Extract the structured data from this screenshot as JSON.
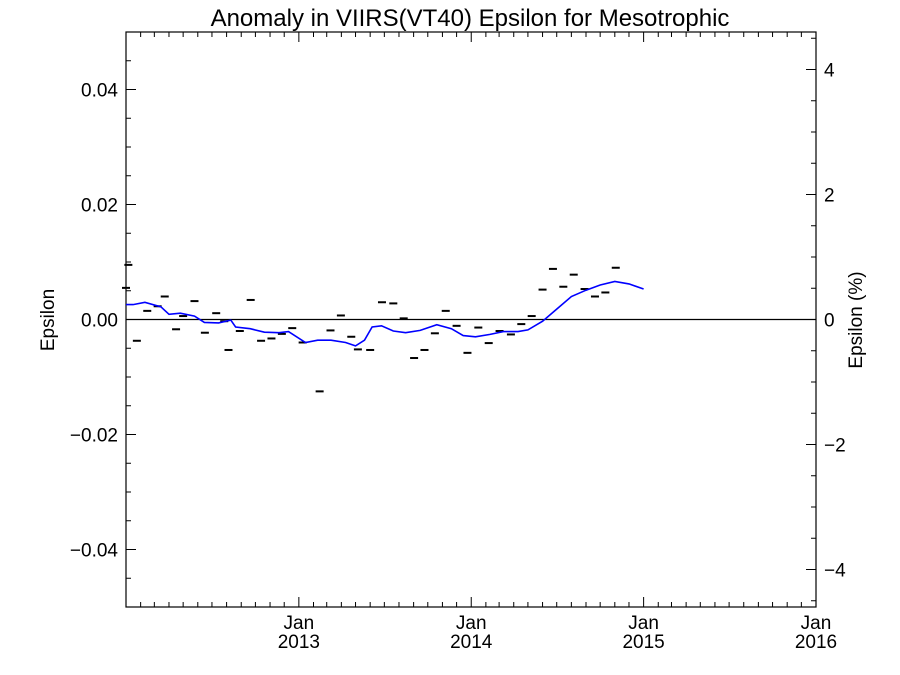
{
  "chart_data": {
    "type": "scatter",
    "title": "Anomaly in VIIRS(VT40) Epsilon for Mesotrophic",
    "ylabel": "Epsilon",
    "y2label": "Epsilon (%)",
    "xlabel": "",
    "xlim": [
      "2012-01-01",
      "2016-01-01"
    ],
    "ylim": [
      -0.05,
      0.05
    ],
    "y2lim": [
      -4.6,
      4.6
    ],
    "y_ticks": [
      -0.04,
      -0.02,
      0.0,
      0.02,
      0.04
    ],
    "y_tick_labels": [
      "−0.04",
      "−0.02",
      "0.00",
      "0.02",
      "0.04"
    ],
    "y2_ticks": [
      -4,
      -2,
      0,
      2,
      4
    ],
    "y2_tick_labels": [
      "−4",
      "−2",
      "0",
      "2",
      "4"
    ],
    "x_ticks": [
      {
        "date": "2013-01-01",
        "month": "Jan",
        "year": "2013"
      },
      {
        "date": "2014-01-01",
        "month": "Jan",
        "year": "2014"
      },
      {
        "date": "2015-01-01",
        "month": "Jan",
        "year": "2015"
      },
      {
        "date": "2016-01-01",
        "month": "Jan",
        "year": "2016"
      }
    ],
    "zero_line": true,
    "grid": false,
    "series": [
      {
        "kind": "points",
        "marker": "dash",
        "color": "#000000",
        "points": [
          [
            "2012-01-01",
            0.0055
          ],
          [
            "2012-01-06",
            0.0095
          ],
          [
            "2012-01-24",
            -0.0037
          ],
          [
            "2012-02-15",
            0.0015
          ],
          [
            "2012-03-08",
            0.0023
          ],
          [
            "2012-03-23",
            0.004
          ],
          [
            "2012-04-16",
            -0.0017
          ],
          [
            "2012-05-01",
            0.0006
          ],
          [
            "2012-05-25",
            0.0032
          ],
          [
            "2012-06-16",
            -0.0023
          ],
          [
            "2012-07-10",
            0.0011
          ],
          [
            "2012-07-27",
            -0.0003
          ],
          [
            "2012-08-05",
            -0.0053
          ],
          [
            "2012-08-29",
            -0.002
          ],
          [
            "2012-09-21",
            0.0034
          ],
          [
            "2012-10-13",
            -0.0037
          ],
          [
            "2012-11-04",
            -0.0033
          ],
          [
            "2012-11-26",
            -0.0025
          ],
          [
            "2012-12-18",
            -0.0015
          ],
          [
            "2013-01-09",
            -0.004
          ],
          [
            "2013-02-14",
            -0.0125
          ],
          [
            "2013-03-09",
            -0.0019
          ],
          [
            "2013-03-31",
            0.0007
          ],
          [
            "2013-04-22",
            -0.003
          ],
          [
            "2013-05-06",
            -0.0052
          ],
          [
            "2013-06-01",
            -0.0053
          ],
          [
            "2013-06-26",
            0.003
          ],
          [
            "2013-07-20",
            0.0028
          ],
          [
            "2013-08-11",
            0.0002
          ],
          [
            "2013-09-02",
            -0.0067
          ],
          [
            "2013-09-24",
            -0.0053
          ],
          [
            "2013-10-16",
            -0.0024
          ],
          [
            "2013-11-08",
            0.0015
          ],
          [
            "2013-12-01",
            -0.0011
          ],
          [
            "2013-12-24",
            -0.0058
          ],
          [
            "2014-01-16",
            -0.0014
          ],
          [
            "2014-02-07",
            -0.0041
          ],
          [
            "2014-03-02",
            -0.002
          ],
          [
            "2014-03-26",
            -0.0026
          ],
          [
            "2014-04-17",
            -0.0008
          ],
          [
            "2014-05-09",
            0.0006
          ],
          [
            "2014-06-01",
            0.0052
          ],
          [
            "2014-06-23",
            0.0088
          ],
          [
            "2014-07-15",
            0.0057
          ],
          [
            "2014-08-06",
            0.0078
          ],
          [
            "2014-08-29",
            0.0053
          ],
          [
            "2014-09-20",
            0.004
          ],
          [
            "2014-10-12",
            0.0047
          ],
          [
            "2014-11-03",
            0.009
          ]
        ]
      },
      {
        "kind": "line",
        "color": "#0000ff",
        "points": [
          [
            "2012-01-01",
            0.0026
          ],
          [
            "2012-01-16",
            0.0026
          ],
          [
            "2012-02-10",
            0.003
          ],
          [
            "2012-03-15",
            0.0022
          ],
          [
            "2012-04-01",
            0.0009
          ],
          [
            "2012-04-25",
            0.0011
          ],
          [
            "2012-05-25",
            0.0006
          ],
          [
            "2012-06-15",
            -0.0005
          ],
          [
            "2012-07-15",
            -0.0006
          ],
          [
            "2012-08-10",
            -0.0001
          ],
          [
            "2012-08-20",
            -0.0013
          ],
          [
            "2012-09-20",
            -0.0016
          ],
          [
            "2012-10-20",
            -0.0022
          ],
          [
            "2012-11-20",
            -0.0023
          ],
          [
            "2012-12-10",
            -0.0021
          ],
          [
            "2013-01-15",
            -0.004
          ],
          [
            "2013-02-10",
            -0.0036
          ],
          [
            "2013-03-10",
            -0.0036
          ],
          [
            "2013-04-10",
            -0.004
          ],
          [
            "2013-05-01",
            -0.0046
          ],
          [
            "2013-05-20",
            -0.0036
          ],
          [
            "2013-06-05",
            -0.0013
          ],
          [
            "2013-06-25",
            -0.0011
          ],
          [
            "2013-07-20",
            -0.002
          ],
          [
            "2013-08-15",
            -0.0023
          ],
          [
            "2013-09-15",
            -0.0019
          ],
          [
            "2013-10-20",
            -0.0009
          ],
          [
            "2013-11-20",
            -0.0016
          ],
          [
            "2013-12-15",
            -0.0028
          ],
          [
            "2014-01-10",
            -0.003
          ],
          [
            "2014-02-10",
            -0.0026
          ],
          [
            "2014-03-10",
            -0.0021
          ],
          [
            "2014-04-10",
            -0.0021
          ],
          [
            "2014-05-01",
            -0.0018
          ],
          [
            "2014-06-01",
            -0.0003
          ],
          [
            "2014-07-01",
            0.0018
          ],
          [
            "2014-08-01",
            0.004
          ],
          [
            "2014-09-01",
            0.0051
          ],
          [
            "2014-10-01",
            0.006
          ],
          [
            "2014-11-01",
            0.0066
          ],
          [
            "2014-12-01",
            0.0062
          ],
          [
            "2015-01-01",
            0.0053
          ]
        ]
      }
    ]
  }
}
